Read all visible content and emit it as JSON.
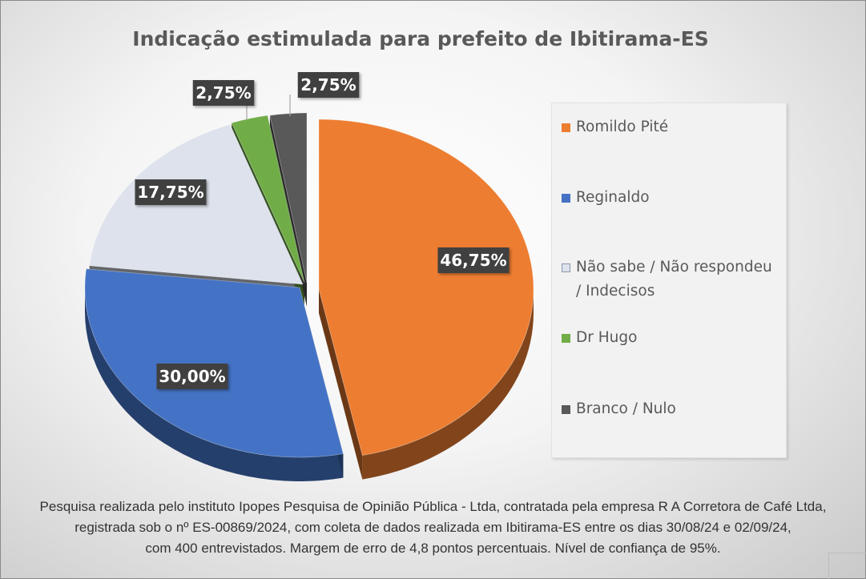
{
  "chart_data": {
    "type": "pie",
    "title": "Indicação estimulada para prefeito de Ibitirama-ES",
    "slices": [
      {
        "name": "Romildo Pité",
        "value": 46.75,
        "label": "46,75%",
        "color": "#ED7D31"
      },
      {
        "name": "Reginaldo",
        "value": 30.0,
        "label": "30,00%",
        "color": "#4472C4"
      },
      {
        "name": "Não sabe / Não respondeu / Indecisos",
        "value": 17.75,
        "label": "17,75%",
        "color": "#DDE2EC"
      },
      {
        "name": "Dr Hugo",
        "value": 2.75,
        "label": "2,75%",
        "color": "#70AD47"
      },
      {
        "name": "Branco / Nulo",
        "value": 2.75,
        "label": "2,75%",
        "color": "#595959"
      }
    ],
    "legend_position": "right",
    "style": "3d-exploded"
  },
  "legend": {
    "items": [
      {
        "lines": [
          "Romildo Pité"
        ],
        "color": "#ED7D31"
      },
      {
        "lines": [
          "Reginaldo"
        ],
        "color": "#4472C4"
      },
      {
        "lines": [
          "Não sabe / Não respondeu",
          "/ Indecisos"
        ],
        "color": "#DDE2EC"
      },
      {
        "lines": [
          "Dr Hugo"
        ],
        "color": "#70AD47"
      },
      {
        "lines": [
          "Branco / Nulo"
        ],
        "color": "#595959"
      }
    ]
  },
  "footnote": {
    "line1": "Pesquisa realizada pelo instituto Ipopes Pesquisa de Opinião Pública - Ltda, contratada pela empresa R A Corretora de Café Ltda,",
    "line2": "registrada sob o nº ES-00869/2024, com coleta de dados realizada em Ibitirama-ES entre os dias 30/08/24 e 02/09/24,",
    "line3": "com 400 entrevistados. Margem de erro de 4,8 pontos percentuais. Nível de confiança de 95%."
  }
}
